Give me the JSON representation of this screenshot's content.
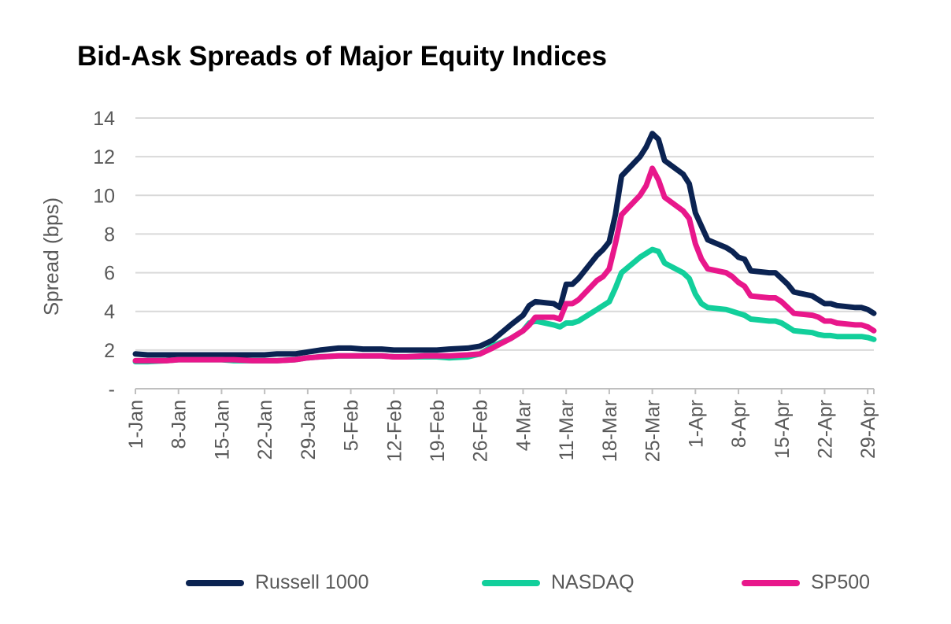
{
  "chart_data": {
    "type": "line",
    "title": "Bid-Ask Spreads of Major Equity Indices",
    "ylabel": "Spread  (bps)",
    "xlabel": "",
    "ylim": [
      0,
      14
    ],
    "y_ticks": [
      0,
      2,
      4,
      6,
      8,
      10,
      12,
      14
    ],
    "y_tick_labels": [
      "-",
      "2",
      "4",
      "6",
      "8",
      "10",
      "12",
      "14"
    ],
    "grid": "horizontal",
    "legend_position": "bottom",
    "x_start_label": "1-Jan",
    "x_end_label": "30-Apr",
    "x_tick_labels": [
      "1-Jan",
      "8-Jan",
      "15-Jan",
      "22-Jan",
      "29-Jan",
      "5-Feb",
      "12-Feb",
      "19-Feb",
      "26-Feb",
      "4-Mar",
      "11-Mar",
      "18-Mar",
      "25-Mar",
      "1-Apr",
      "8-Apr",
      "15-Apr",
      "22-Apr",
      "29-Apr"
    ],
    "x": [
      "1-Jan",
      "3-Jan",
      "6-Jan",
      "8-Jan",
      "10-Jan",
      "13-Jan",
      "15-Jan",
      "17-Jan",
      "20-Jan",
      "22-Jan",
      "24-Jan",
      "27-Jan",
      "29-Jan",
      "31-Jan",
      "3-Feb",
      "5-Feb",
      "7-Feb",
      "10-Feb",
      "12-Feb",
      "14-Feb",
      "17-Feb",
      "19-Feb",
      "21-Feb",
      "24-Feb",
      "26-Feb",
      "28-Feb",
      "2-Mar",
      "4-Mar",
      "5-Mar",
      "6-Mar",
      "9-Mar",
      "10-Mar",
      "11-Mar",
      "12-Mar",
      "13-Mar",
      "16-Mar",
      "17-Mar",
      "18-Mar",
      "19-Mar",
      "20-Mar",
      "23-Mar",
      "24-Mar",
      "25-Mar",
      "26-Mar",
      "27-Mar",
      "30-Mar",
      "31-Mar",
      "1-Apr",
      "2-Apr",
      "3-Apr",
      "6-Apr",
      "7-Apr",
      "8-Apr",
      "9-Apr",
      "10-Apr",
      "13-Apr",
      "14-Apr",
      "15-Apr",
      "16-Apr",
      "17-Apr",
      "20-Apr",
      "21-Apr",
      "22-Apr",
      "23-Apr",
      "24-Apr",
      "27-Apr",
      "28-Apr",
      "29-Apr",
      "30-Apr"
    ],
    "series": [
      {
        "name": "Russell 1000",
        "color": "#0b2352",
        "values": [
          1.8,
          1.75,
          1.75,
          1.75,
          1.75,
          1.75,
          1.75,
          1.75,
          1.75,
          1.75,
          1.8,
          1.8,
          1.9,
          2.0,
          2.1,
          2.1,
          2.05,
          2.05,
          2.0,
          2.0,
          2.0,
          2.0,
          2.05,
          2.1,
          2.2,
          2.5,
          3.3,
          3.8,
          4.3,
          4.5,
          4.4,
          4.2,
          5.4,
          5.4,
          5.7,
          6.9,
          7.2,
          7.6,
          9.0,
          11.0,
          12.0,
          12.5,
          13.2,
          12.9,
          11.8,
          11.1,
          10.6,
          9.1,
          8.4,
          7.7,
          7.3,
          7.1,
          6.8,
          6.7,
          6.1,
          6.0,
          6.0,
          5.7,
          5.4,
          5.0,
          4.8,
          4.6,
          4.4,
          4.4,
          4.3,
          4.2,
          4.2,
          4.1,
          3.9
        ]
      },
      {
        "name": "NASDAQ",
        "color": "#12cf9b",
        "values": [
          1.4,
          1.4,
          1.45,
          1.5,
          1.5,
          1.5,
          1.5,
          1.45,
          1.45,
          1.45,
          1.45,
          1.5,
          1.6,
          1.65,
          1.7,
          1.7,
          1.7,
          1.7,
          1.65,
          1.65,
          1.65,
          1.65,
          1.6,
          1.65,
          1.8,
          2.2,
          2.6,
          3.0,
          3.4,
          3.5,
          3.3,
          3.2,
          3.4,
          3.4,
          3.5,
          4.1,
          4.3,
          4.5,
          5.2,
          6.0,
          6.8,
          7.0,
          7.2,
          7.1,
          6.5,
          6.0,
          5.7,
          4.9,
          4.4,
          4.2,
          4.1,
          4.0,
          3.9,
          3.8,
          3.6,
          3.5,
          3.5,
          3.4,
          3.2,
          3.0,
          2.9,
          2.8,
          2.75,
          2.75,
          2.7,
          2.7,
          2.7,
          2.65,
          2.55
        ]
      },
      {
        "name": "SP500",
        "color": "#e8178b",
        "values": [
          1.45,
          1.45,
          1.45,
          1.5,
          1.5,
          1.5,
          1.5,
          1.5,
          1.45,
          1.45,
          1.45,
          1.5,
          1.6,
          1.65,
          1.7,
          1.7,
          1.7,
          1.7,
          1.65,
          1.65,
          1.7,
          1.7,
          1.7,
          1.75,
          1.8,
          2.1,
          2.6,
          3.0,
          3.3,
          3.7,
          3.7,
          3.6,
          4.4,
          4.4,
          4.6,
          5.6,
          5.8,
          6.2,
          7.5,
          9.0,
          10.0,
          10.5,
          11.4,
          10.8,
          9.9,
          9.2,
          8.8,
          7.5,
          6.7,
          6.2,
          6.0,
          5.8,
          5.5,
          5.3,
          4.8,
          4.7,
          4.7,
          4.5,
          4.2,
          3.9,
          3.8,
          3.7,
          3.5,
          3.5,
          3.4,
          3.3,
          3.3,
          3.2,
          3.0
        ]
      }
    ]
  }
}
